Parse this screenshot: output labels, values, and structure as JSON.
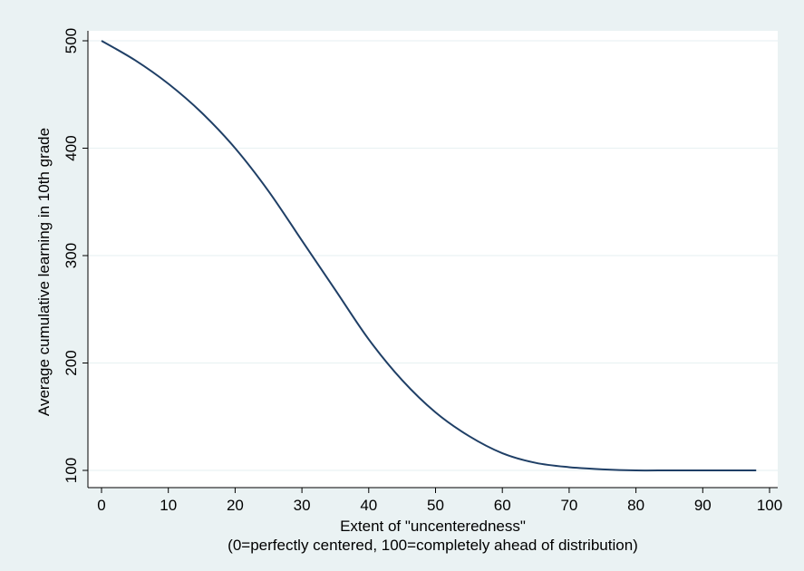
{
  "chart_data": {
    "type": "line",
    "title": "",
    "xlabel": "Extent of \"uncenteredness\"",
    "xlabel_note": "(0=perfectly centered, 100=completely ahead of distribution)",
    "ylabel": "Average cumulative learning in 10th grade",
    "xlim": [
      0,
      100
    ],
    "ylim": [
      100,
      500
    ],
    "xticks": [
      0,
      10,
      20,
      30,
      40,
      50,
      60,
      70,
      80,
      90,
      100
    ],
    "yticks": [
      100,
      200,
      300,
      400,
      500
    ],
    "grid": "horizontal",
    "colors": {
      "line": "#1f3f66",
      "plot_bg": "#ffffff",
      "outer_bg": "#eaf2f3",
      "grid": "#eaf2f3"
    },
    "series": [
      {
        "x": [
          0,
          5,
          10,
          15,
          20,
          25,
          30,
          35,
          40,
          45,
          50,
          55,
          60,
          65,
          70,
          75,
          80,
          85,
          90,
          95,
          98
        ],
        "values": [
          500,
          482,
          460,
          433,
          400,
          360,
          314,
          268,
          222,
          184,
          154,
          132,
          116,
          107,
          103,
          101,
          100,
          100,
          100,
          100,
          100
        ]
      }
    ]
  }
}
